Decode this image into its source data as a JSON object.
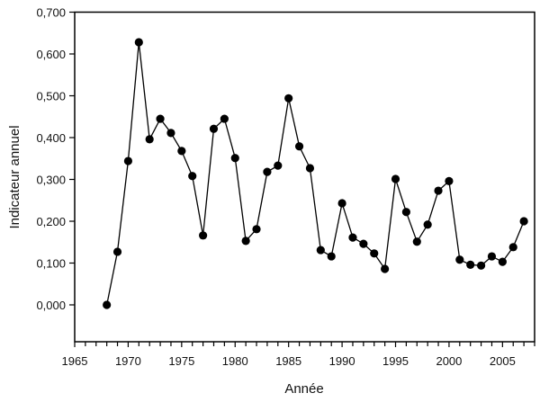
{
  "chart_data": {
    "type": "line",
    "title": "",
    "xlabel": "Année",
    "ylabel": "Indicateur annuel",
    "xlim": [
      1965,
      2008
    ],
    "ylim": [
      -0.1,
      0.7
    ],
    "grid": false,
    "legend": null,
    "x_ticks": [
      1965,
      1970,
      1975,
      1980,
      1985,
      1990,
      1995,
      2000,
      2005
    ],
    "x_tick_labels": [
      "1965",
      "1970",
      "1975",
      "1980",
      "1985",
      "1990",
      "1995",
      "2000",
      "2005"
    ],
    "y_ticks": [
      0.0,
      0.1,
      0.2,
      0.3,
      0.4,
      0.5,
      0.6,
      0.7
    ],
    "y_tick_labels": [
      "0,000",
      "0,100",
      "0,200",
      "0,300",
      "0,400",
      "0,500",
      "0,600",
      "0,700"
    ],
    "series": [
      {
        "name": "Indicateur annuel",
        "marker": "filled-circle",
        "color": "#000000",
        "x": [
          1968,
          1969,
          1970,
          1971,
          1972,
          1973,
          1974,
          1975,
          1976,
          1977,
          1978,
          1979,
          1980,
          1981,
          1982,
          1983,
          1984,
          1985,
          1986,
          1987,
          1988,
          1989,
          1990,
          1991,
          1992,
          1993,
          1994,
          1995,
          1996,
          1997,
          1998,
          1999,
          2000,
          2001,
          2002,
          2003,
          2004,
          2005,
          2006,
          2007
        ],
        "values": [
          0.0,
          0.127,
          0.344,
          0.628,
          0.396,
          0.445,
          0.411,
          0.368,
          0.308,
          0.166,
          0.421,
          0.445,
          0.351,
          0.153,
          0.181,
          0.318,
          0.333,
          0.494,
          0.379,
          0.327,
          0.131,
          0.116,
          0.243,
          0.161,
          0.146,
          0.123,
          0.086,
          0.301,
          0.222,
          0.151,
          0.192,
          0.273,
          0.296,
          0.108,
          0.096,
          0.094,
          0.116,
          0.103,
          0.138,
          0.2
        ]
      }
    ]
  }
}
